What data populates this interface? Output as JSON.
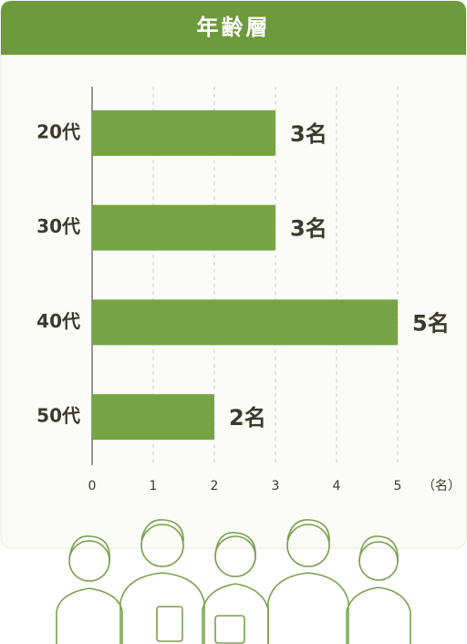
{
  "chart_data": {
    "type": "bar",
    "orientation": "horizontal",
    "title": "年齢層",
    "categories": [
      "20代",
      "30代",
      "40代",
      "50代"
    ],
    "values": [
      3,
      3,
      5,
      2
    ],
    "value_labels": [
      "3名",
      "3名",
      "5名",
      "2名"
    ],
    "color": "#76a444",
    "xlim": [
      0,
      5
    ],
    "xticks": [
      0,
      1,
      2,
      3,
      4,
      5
    ],
    "x_unit": "（名）",
    "grid": true
  }
}
